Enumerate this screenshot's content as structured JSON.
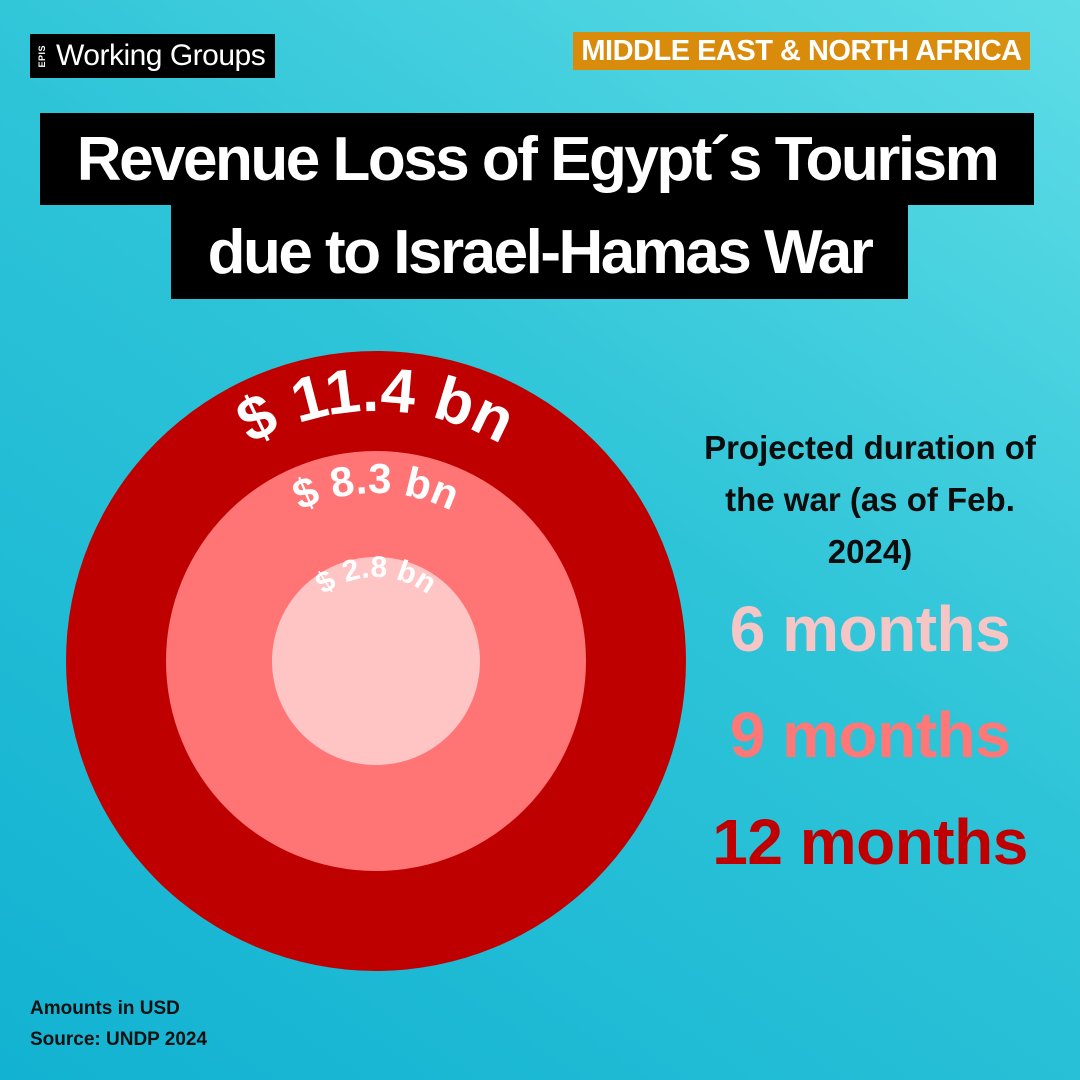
{
  "brand": {
    "tag": "EPIS",
    "name": "Working Groups"
  },
  "region": "MIDDLE EAST & NORTH AFRICA",
  "title": {
    "line1": "Revenue Loss of Egypt´s Tourism",
    "line2": "due to Israel-Hamas War"
  },
  "legend": {
    "title_lines": [
      "Projected duration of",
      "the war (as of Feb.",
      "2024)"
    ],
    "items": [
      {
        "label": "6 months",
        "color": "#f6c5c6"
      },
      {
        "label": "9 months",
        "color": "#ff7777"
      },
      {
        "label": "12 months",
        "color": "#c00000"
      }
    ]
  },
  "chart_data": {
    "type": "nested-circles",
    "series": [
      {
        "name": "12 months",
        "value": 11.4,
        "label": "$ 11.4 bn",
        "color": "#bf0000"
      },
      {
        "name": "9 months",
        "value": 8.3,
        "label": "$ 8.3 bn",
        "color": "#ff7575"
      },
      {
        "name": "6 months",
        "value": 2.8,
        "label": "$ 2.8 bn",
        "color": "#ffc4c4"
      }
    ],
    "unit": "USD"
  },
  "footer": {
    "line1": "Amounts in USD",
    "line2": "Source:  UNDP 2024"
  }
}
